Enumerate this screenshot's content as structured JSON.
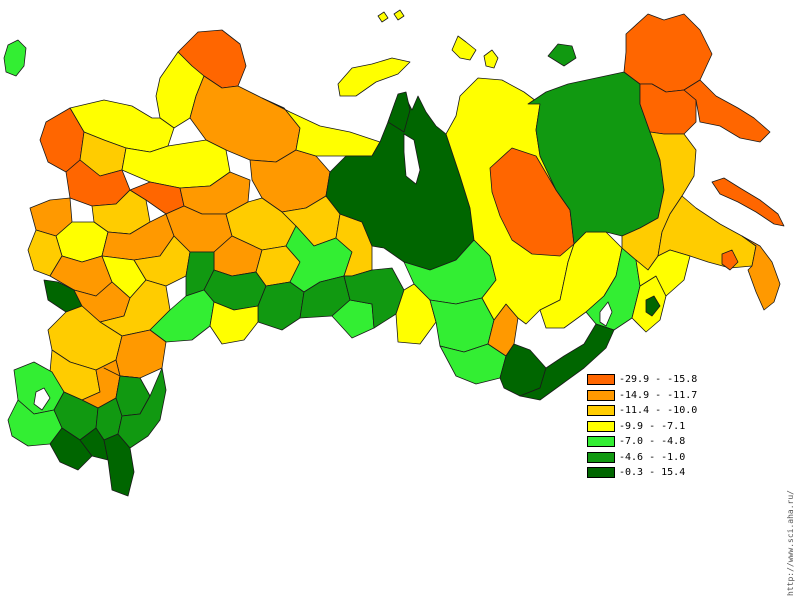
{
  "legend": {
    "items": [
      {
        "label": "-29.9 - -15.8",
        "color": "#ff6600"
      },
      {
        "label": "-14.9 - -11.7",
        "color": "#ff9900"
      },
      {
        "label": "-11.4 - -10.0",
        "color": "#ffcc00"
      },
      {
        "label": "-9.9 - -7.1",
        "color": "#ffff00"
      },
      {
        "label": "-7.0 - -4.8",
        "color": "#33ee33"
      },
      {
        "label": "-4.6 - -1.0",
        "color": "#119911"
      },
      {
        "label": "-0.3 - 15.4",
        "color": "#006600"
      }
    ]
  },
  "credit": "http://www.sci.aha.ru/"
}
